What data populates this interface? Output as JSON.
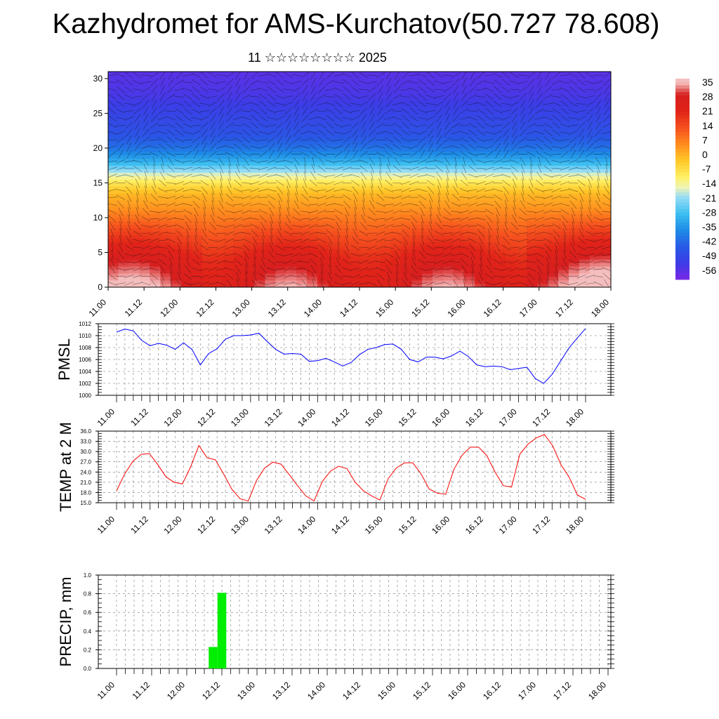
{
  "title": "Kazhydromet for AMS-Kurchatov(50.727 78.608)",
  "subtitle": "11 ☆☆☆☆☆☆☆☆ 2025",
  "colors": {
    "pmsl_line": "#0000ff",
    "temp_line": "#ff0000",
    "precip_bar": "#00ee00",
    "grid": "#888888"
  },
  "chart_data": [
    {
      "type": "heatmap",
      "x_ticks": [
        "11.00",
        "11.12",
        "12.00",
        "12.12",
        "13.00",
        "13.12",
        "14.00",
        "14.12",
        "15.00",
        "15.12",
        "16.00",
        "16.12",
        "17.00",
        "17.12",
        "18.00"
      ],
      "y_ticks": [
        0,
        5,
        10,
        15,
        20,
        25,
        30
      ],
      "ylim": [
        0,
        31
      ],
      "colorbar_labels": [
        "35",
        "28",
        "21",
        "14",
        "7",
        "0",
        "-7",
        "-14",
        "-21",
        "-28",
        "-35",
        "-42",
        "-49",
        "-56"
      ],
      "colorbar_range": [
        -60,
        38
      ],
      "profile": {
        "heights": [
          0,
          4,
          8,
          11,
          13.5,
          15,
          16.5,
          18,
          20,
          22,
          25,
          28,
          31
        ],
        "values": [
          30,
          24,
          14,
          6,
          0,
          -8,
          -18,
          -30,
          -40,
          -46,
          -50,
          -54,
          -56
        ]
      },
      "vector_field": true
    },
    {
      "type": "line",
      "ylabel": "PMSL",
      "ylim": [
        1000,
        1012
      ],
      "y_ticks": [
        "1000",
        "1002",
        "1004",
        "1006",
        "1008",
        "1010",
        "1012"
      ],
      "x_ticks": [
        "11.00",
        "11.12",
        "12.00",
        "12.12",
        "13.00",
        "13.12",
        "14.00",
        "14.12",
        "15.00",
        "15.12",
        "16.00",
        "16.12",
        "17.00",
        "17.12",
        "18.00"
      ],
      "series": [
        {
          "values": [
            1010.6,
            1011.1,
            1010.8,
            1009.2,
            1008.3,
            1008.7,
            1008.4,
            1007.7,
            1008.8,
            1007.7,
            1005.1,
            1007.0,
            1007.8,
            1009.4,
            1010.0,
            1010.0,
            1010.1,
            1010.4,
            1009.0,
            1007.7,
            1006.9,
            1007.0,
            1006.9,
            1005.7,
            1005.8,
            1006.2,
            1005.6,
            1004.9,
            1005.5,
            1006.8,
            1007.7,
            1008.0,
            1008.5,
            1008.6,
            1007.7,
            1006.0,
            1005.6,
            1006.4,
            1006.4,
            1006.1,
            1006.6,
            1007.4,
            1006.5,
            1005.1,
            1004.8,
            1004.9,
            1004.8,
            1004.3,
            1004.5,
            1004.7,
            1002.8,
            1002.0,
            1003.5,
            1005.7,
            1007.9,
            1009.6,
            1011.2
          ]
        }
      ]
    },
    {
      "type": "line",
      "ylabel": "TEMP at 2 M",
      "ylim": [
        15,
        36
      ],
      "y_ticks": [
        "15.0",
        "18.0",
        "21.0",
        "24.0",
        "27.0",
        "30.0",
        "33.0",
        "36.0"
      ],
      "x_ticks": [
        "11.00",
        "11.12",
        "12.00",
        "12.12",
        "13.00",
        "13.12",
        "14.00",
        "14.12",
        "15.00",
        "15.12",
        "16.00",
        "16.12",
        "17.00",
        "17.12",
        "18.00"
      ],
      "series": [
        {
          "values": [
            18.5,
            23.5,
            27.2,
            29.2,
            29.4,
            26.2,
            22.6,
            21.0,
            20.5,
            25.5,
            31.8,
            28.2,
            27.6,
            23.5,
            19.0,
            16.2,
            15.5,
            21.5,
            25.2,
            26.9,
            26.3,
            23.2,
            20.0,
            17.0,
            15.5,
            21.2,
            24.3,
            25.7,
            25.0,
            21.0,
            18.5,
            17.0,
            15.8,
            22.0,
            25.2,
            26.7,
            26.7,
            23.5,
            19.0,
            17.8,
            17.5,
            24.8,
            29.0,
            31.3,
            31.3,
            28.8,
            24.0,
            20.0,
            19.6,
            29.2,
            32.2,
            34.0,
            35.0,
            31.7,
            26.2,
            22.5,
            17.3,
            16.0
          ]
        }
      ]
    },
    {
      "type": "bar",
      "ylabel": "PRECIP, mm",
      "ylim": [
        0,
        1
      ],
      "y_ticks": [
        "0.0",
        "0.2",
        "0.4",
        "0.6",
        "0.8",
        "1.0"
      ],
      "x_ticks": [
        "11.00",
        "11.12",
        "12.00",
        "12.12",
        "13.00",
        "13.12",
        "14.00",
        "14.12",
        "15.00",
        "15.12",
        "16.00",
        "16.12",
        "17.00",
        "17.12",
        "18.00"
      ],
      "bars": [
        {
          "t": 11,
          "value": 0.23
        },
        {
          "t": 12,
          "value": 0.81
        }
      ]
    }
  ]
}
